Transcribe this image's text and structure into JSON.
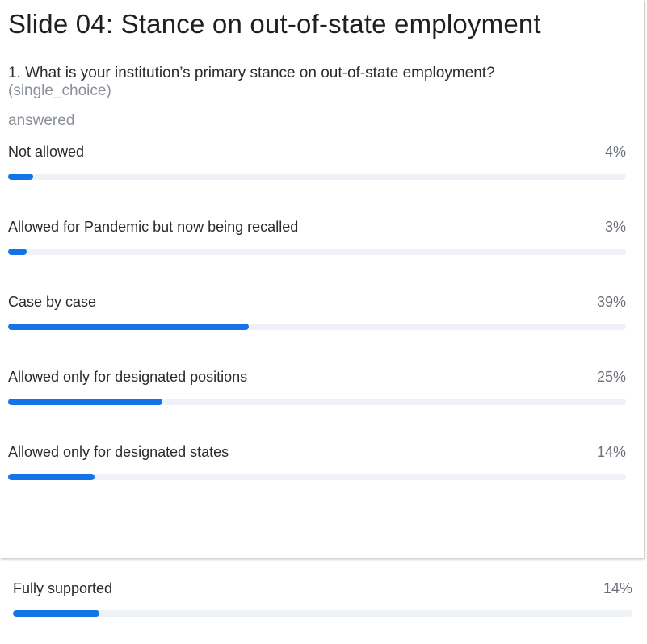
{
  "slide": {
    "title": "Slide 04: Stance on out-of-state employment"
  },
  "question": {
    "text": "1. What is your institution’s primary stance on out-of-state employment?",
    "type": "(single_choice)"
  },
  "status": "answered",
  "colors": {
    "bar_fill": "#1473e6",
    "bar_track": "#eef1f5"
  },
  "options": [
    {
      "label": "Not allowed",
      "percent_label": "4%",
      "percent": 4
    },
    {
      "label": "Allowed for Pandemic but now being recalled",
      "percent_label": "3%",
      "percent": 3
    },
    {
      "label": "Case by case",
      "percent_label": "39%",
      "percent": 39
    },
    {
      "label": "Allowed only for designated positions",
      "percent_label": "25%",
      "percent": 25
    },
    {
      "label": "Allowed only for designated states",
      "percent_label": "14%",
      "percent": 14
    },
    {
      "label": "Fully supported",
      "percent_label": "14%",
      "percent": 14
    }
  ]
}
